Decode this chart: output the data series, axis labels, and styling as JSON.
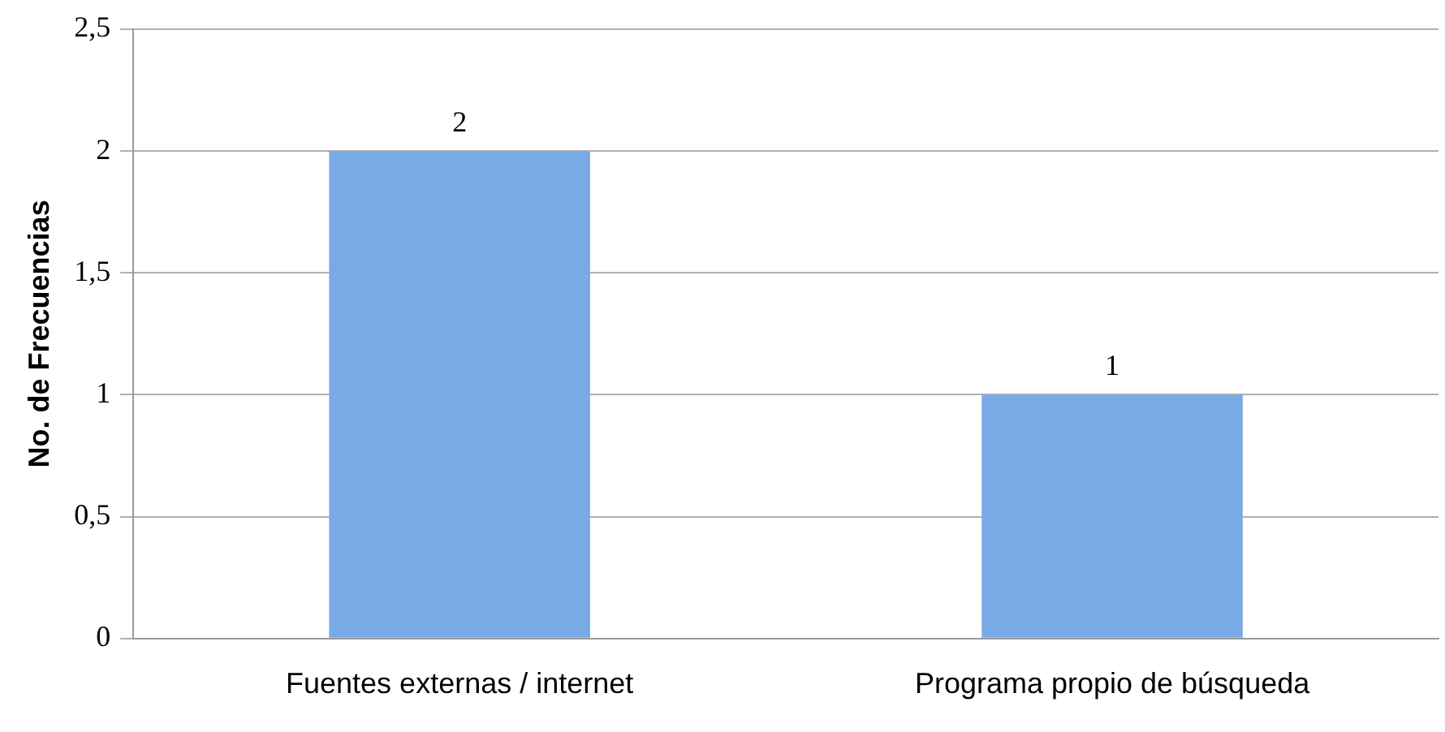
{
  "chart_data": {
    "type": "bar",
    "ylabel": "No. de Frecuencias",
    "categories": [
      "Fuentes externas / internet",
      "Programa propio de búsqueda"
    ],
    "values": [
      2,
      1
    ],
    "color": "#7aaae6",
    "ylim": [
      0,
      2.5
    ],
    "yticks": [
      0,
      {
        "value": 0.5,
        "label": "0,5"
      },
      1,
      {
        "value": 1.5,
        "label": "1,5"
      },
      2,
      {
        "value": 2.5,
        "label": "2,5"
      }
    ],
    "grid": "y",
    "data_labels": true,
    "legend": false
  }
}
